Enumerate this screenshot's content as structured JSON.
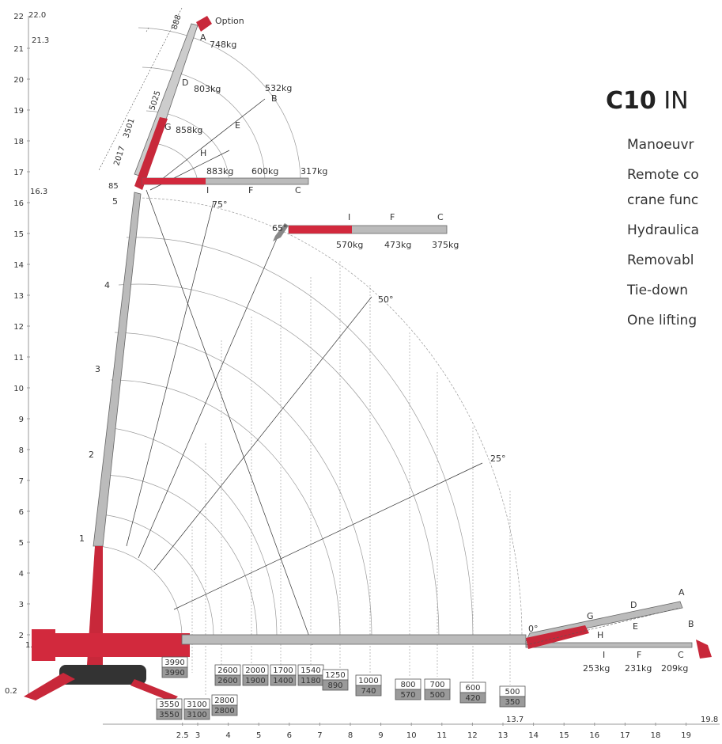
{
  "heading": {
    "bold": "C10",
    "rest": "IN"
  },
  "features": [
    "Manoeuvr",
    "Remote co",
    "crane func",
    "Hydraulica",
    "Removabl",
    "Tie-down",
    "One lifting"
  ],
  "y_axis_ticks": [
    "2",
    "3",
    "4",
    "5",
    "6",
    "7",
    "8",
    "9",
    "10",
    "11",
    "12",
    "13",
    "14",
    "15",
    "16",
    "17",
    "18",
    "19",
    "20",
    "21",
    "22"
  ],
  "y_axis_special": [
    "22.0",
    "21.3",
    "16.3",
    "1.7",
    "0.2"
  ],
  "x_axis_ticks": [
    "2.5",
    "3",
    "4",
    "5",
    "6",
    "7",
    "8",
    "9",
    "10",
    "11",
    "12",
    "13",
    "14",
    "15",
    "16",
    "17",
    "18",
    "19"
  ],
  "x_axis_special": [
    "13.7",
    "19.8"
  ],
  "boom_sections": [
    "1",
    "2",
    "3",
    "4",
    "5"
  ],
  "angles": [
    "85",
    "75°",
    "65°",
    "50°",
    "25°",
    "0°"
  ],
  "jib_dims": [
    "888",
    "5025",
    "3501",
    "2017"
  ],
  "jib_option_label": "Option",
  "jib_upper": {
    "points": [
      "A",
      "D",
      "G",
      "H",
      "E",
      "B",
      "I",
      "F",
      "C"
    ],
    "loads": [
      "748kg",
      "803kg",
      "858kg",
      "532kg",
      "883kg",
      "600kg",
      "317kg"
    ]
  },
  "jib_65": {
    "points": [
      "I",
      "F",
      "C"
    ],
    "loads": [
      "570kg",
      "473kg",
      "375kg"
    ]
  },
  "jib_0": {
    "points": [
      "A",
      "D",
      "G",
      "H",
      "E",
      "B",
      "I",
      "F",
      "C"
    ],
    "loads": [
      "253kg",
      "231kg",
      "209kg"
    ]
  },
  "chart_data": {
    "type": "table",
    "load_boxes": [
      {
        "top": "3990",
        "bottom": "3990"
      },
      {
        "top": "3550",
        "bottom": "3550"
      },
      {
        "top": "3100",
        "bottom": "3100"
      },
      {
        "top": "2800",
        "bottom": "2800"
      },
      {
        "top": "2600",
        "bottom": "2600"
      },
      {
        "top": "2000",
        "bottom": "1900"
      },
      {
        "top": "1700",
        "bottom": "1400"
      },
      {
        "top": "1540",
        "bottom": "1180"
      },
      {
        "top": "1250",
        "bottom": "890"
      },
      {
        "top": "1000",
        "bottom": "740"
      },
      {
        "top": "800",
        "bottom": "570"
      },
      {
        "top": "700",
        "bottom": "500"
      },
      {
        "top": "600",
        "bottom": "420"
      },
      {
        "top": "500",
        "bottom": "350"
      }
    ],
    "max_height_m": 22.0,
    "max_radius_m": 19.8
  }
}
